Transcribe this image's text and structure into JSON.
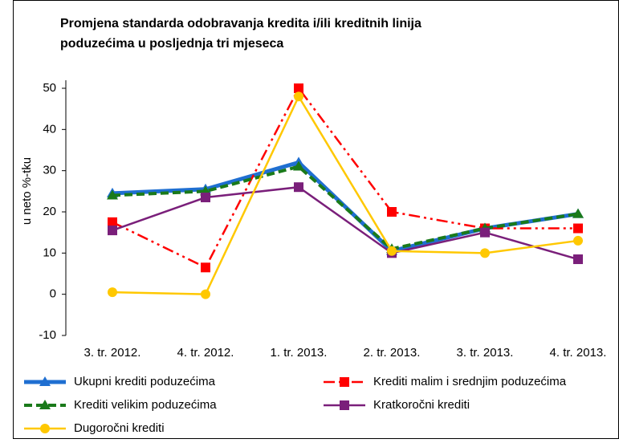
{
  "chart_data": {
    "type": "line",
    "title": [
      "Promjena standarda odobravanja kredita i/ili kreditnih linija",
      "poduzećima u posljednja tri mjeseca"
    ],
    "y_label": "u neto %-tku",
    "categories": [
      "3. tr. 2012.",
      "4. tr. 2012.",
      "1. tr. 2013.",
      "2. tr. 2013.",
      "3. tr. 2013.",
      "4. tr. 2013."
    ],
    "series": [
      {
        "name": "Ukupni krediti poduzećima",
        "color": "#1f6fd1",
        "values": [
          24.5,
          25.5,
          32,
          10.5,
          16,
          19.5
        ]
      },
      {
        "name": "Krediti malim i srednjim poduzećima",
        "color": "#ff0000",
        "values": [
          17.5,
          6.5,
          50,
          20,
          16,
          16
        ]
      },
      {
        "name": "Krediti velikim poduzećima",
        "color": "#1a7a1a",
        "values": [
          24,
          25,
          31,
          11,
          16,
          19.5
        ]
      },
      {
        "name": "Kratkoročni krediti",
        "color": "#7a1f7a",
        "values": [
          15.5,
          23.5,
          26,
          10,
          15,
          8.5
        ]
      },
      {
        "name": "Dugoročni krediti",
        "color": "#ffc800",
        "values": [
          0.5,
          0,
          48,
          10.5,
          10,
          13
        ]
      }
    ],
    "ylim": [
      -10,
      50
    ],
    "yticks": [
      -10,
      0,
      10,
      20,
      30,
      40,
      50
    ],
    "grid": false
  }
}
